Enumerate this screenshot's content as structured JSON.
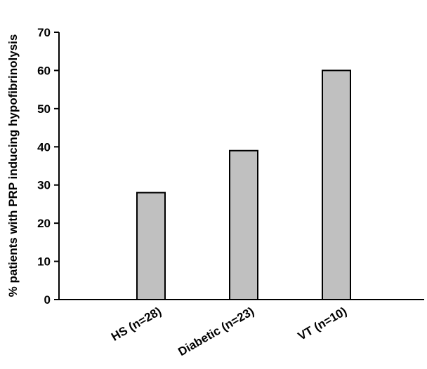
{
  "chart_data": {
    "type": "bar",
    "title": "",
    "xlabel": "",
    "ylabel": "% patients with PRP inducing hypofibrinolysis",
    "categories": [
      "HS (n=28)",
      "Diabetic (n=23)",
      "VT (n=10)"
    ],
    "values": [
      28,
      39,
      60
    ],
    "ylim": [
      0,
      70
    ],
    "yticks": [
      "0",
      "10",
      "20",
      "30",
      "40",
      "50",
      "60",
      "70"
    ],
    "grid": false,
    "legend": "none",
    "bar_color": "#c0c0c0",
    "bar_edge_color": "#000000"
  }
}
